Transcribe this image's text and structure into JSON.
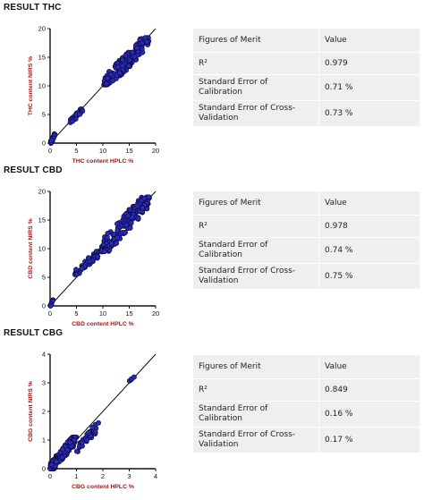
{
  "chart_data": [
    {
      "type": "scatter",
      "section_title": "RESULT THC",
      "xlabel": "THC content HPLC %",
      "ylabel": "THC content NIRS %",
      "xlim": [
        0,
        20
      ],
      "ylim": [
        0,
        20
      ],
      "xticks": [
        0,
        5,
        10,
        15,
        20
      ],
      "yticks": [
        0,
        5,
        10,
        15,
        20
      ],
      "identity_line": true,
      "clusters": [
        {
          "x": [
            0.1,
            0.9
          ],
          "y": [
            0.0,
            1.6
          ],
          "n": 26
        },
        {
          "x": [
            3.8,
            6.2
          ],
          "y": [
            3.6,
            6.0
          ],
          "n": 28
        },
        {
          "x": [
            10.2,
            18.8
          ],
          "y": [
            10.2,
            18.4
          ],
          "n": 140
        }
      ],
      "table": {
        "header": [
          "Figures of Merit",
          "Value"
        ],
        "rows": [
          [
            "R²",
            "0.979"
          ],
          [
            "Standard Error of Calibration",
            "0.71 %"
          ],
          [
            "Standard Error of Cross-Validation",
            "0.73 %"
          ]
        ]
      }
    },
    {
      "type": "scatter",
      "section_title": "RESULT CBD",
      "xlabel": "CBD content HPLC %",
      "ylabel": "CBD content NIRS %",
      "xlim": [
        0,
        20
      ],
      "ylim": [
        0,
        20
      ],
      "xticks": [
        0,
        5,
        10,
        15,
        20
      ],
      "yticks": [
        0,
        5,
        10,
        15,
        20
      ],
      "identity_line": true,
      "clusters": [
        {
          "x": [
            0.0,
            0.6
          ],
          "y": [
            0.0,
            1.2
          ],
          "n": 8
        },
        {
          "x": [
            4.5,
            9.5
          ],
          "y": [
            5.5,
            9.5
          ],
          "n": 45
        },
        {
          "x": [
            9.5,
            18.8
          ],
          "y": [
            9.5,
            19.0
          ],
          "n": 150
        }
      ],
      "table": {
        "header": [
          "Figures of Merit",
          "Value"
        ],
        "rows": [
          [
            "R²",
            "0.978"
          ],
          [
            "Standard Error of Calibration",
            "0.74 %"
          ],
          [
            "Standard Error of Cross-Validation",
            "0.75 %"
          ]
        ]
      }
    },
    {
      "type": "scatter",
      "section_title": "RESULT CBG",
      "xlabel": "CBG content HPLC %",
      "ylabel": "CBG content NIRS %",
      "xlim": [
        0,
        4
      ],
      "ylim": [
        0,
        4
      ],
      "xticks": [
        0,
        1,
        2,
        3,
        4
      ],
      "yticks": [
        0,
        1,
        2,
        3,
        4
      ],
      "identity_line": true,
      "clusters": [
        {
          "x": [
            0.0,
            1.0
          ],
          "y": [
            0.0,
            1.1
          ],
          "n": 150
        },
        {
          "x": [
            1.0,
            1.9
          ],
          "y": [
            0.6,
            1.6
          ],
          "n": 28
        },
        {
          "x": [
            2.7,
            3.2
          ],
          "y": [
            2.6,
            3.2
          ],
          "n": 4
        }
      ],
      "table": {
        "header": [
          "Figures of Merit",
          "Value"
        ],
        "rows": [
          [
            "R²",
            "0.849"
          ],
          [
            "Standard Error of Calibration",
            "0.16 %"
          ],
          [
            "Standard Error of Cross-Validation",
            "0.17 %"
          ]
        ]
      }
    }
  ],
  "colors": {
    "marker_fill": "#2a2ab8",
    "marker_stroke": "#0b0b3a",
    "axis_label": "#b01212",
    "table_bg": "#efefef"
  }
}
